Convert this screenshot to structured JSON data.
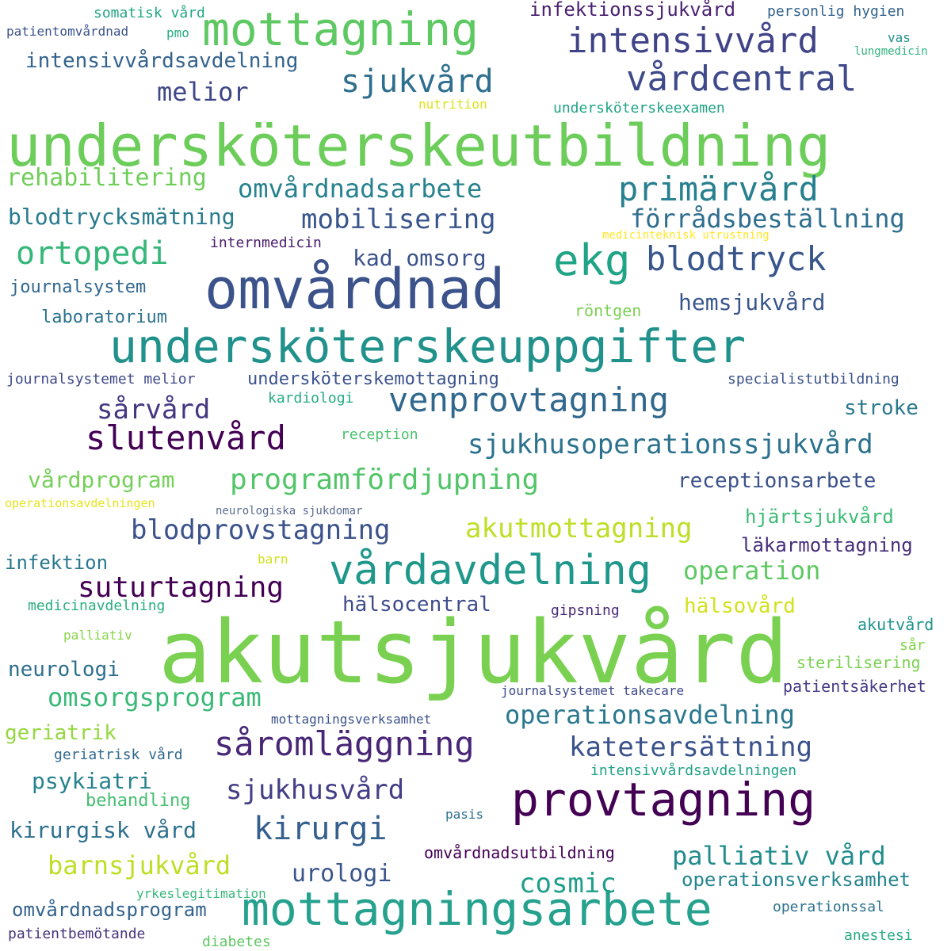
{
  "words": [
    {
      "text": "undersköterskeutbildning",
      "color": "#6ccd5a"
    },
    {
      "text": "akutsjukvård",
      "color": "#7ad151"
    },
    {
      "text": "undersköterskeuppgifter",
      "color": "#21918c"
    },
    {
      "text": "omvårdnad",
      "color": "#3b528b"
    },
    {
      "text": "mottagningsarbete",
      "color": "#25a18e"
    },
    {
      "text": "mottagning",
      "color": "#5ec962"
    },
    {
      "text": "provtagning",
      "color": "#440154"
    },
    {
      "text": "vårdavdelning",
      "color": "#1f988b"
    },
    {
      "text": "ekg",
      "color": "#20a486"
    },
    {
      "text": "vårdcentral",
      "color": "#3e4a89"
    },
    {
      "text": "intensivvård",
      "color": "#404387"
    },
    {
      "text": "sjukvård",
      "color": "#2e6e8e"
    },
    {
      "text": "primärvård",
      "color": "#27808e"
    },
    {
      "text": "blodtryck",
      "color": "#39568c"
    },
    {
      "text": "venprovtagning",
      "color": "#31688e"
    },
    {
      "text": "slutenvård",
      "color": "#440154"
    },
    {
      "text": "såromläggning",
      "color": "#482576"
    },
    {
      "text": "katetersättning",
      "color": "#3b528b"
    },
    {
      "text": "kirurgi",
      "color": "#355f8d"
    },
    {
      "text": "sjukhusvård",
      "color": "#433e85"
    },
    {
      "text": "programfördjupning",
      "color": "#52c569"
    },
    {
      "text": "sjukhusoperationssjukvård",
      "color": "#2c728e"
    },
    {
      "text": "omvårdnadsarbete",
      "color": "#26828e"
    },
    {
      "text": "blodprovstagning",
      "color": "#3b528b"
    },
    {
      "text": "akutmottagning",
      "color": "#bddf26"
    },
    {
      "text": "suturtagning",
      "color": "#440154"
    },
    {
      "text": "operation",
      "color": "#5ec962"
    },
    {
      "text": "ortopedi",
      "color": "#35b779"
    },
    {
      "text": "mobilisering",
      "color": "#39568c"
    },
    {
      "text": "förrådsbeställning",
      "color": "#2e6e8e"
    },
    {
      "text": "omsorgsprogram",
      "color": "#38b977"
    },
    {
      "text": "operationsavdelning",
      "color": "#2a788e"
    },
    {
      "text": "cosmic",
      "color": "#1f9e89"
    },
    {
      "text": "barnsjukvård",
      "color": "#bddf26"
    },
    {
      "text": "palliativ vård",
      "color": "#228c8d"
    },
    {
      "text": "sårvård",
      "color": "#453781"
    },
    {
      "text": "melior",
      "color": "#3f4788"
    },
    {
      "text": "rehabilitering",
      "color": "#6ece58"
    },
    {
      "text": "blodtrycksmätning",
      "color": "#297b8e"
    },
    {
      "text": "kad omsorg",
      "color": "#3b528b"
    },
    {
      "text": "hemsjukvård",
      "color": "#39568c"
    },
    {
      "text": "intensivvårdsavdelning",
      "color": "#33638d"
    },
    {
      "text": "receptionsarbete",
      "color": "#3b528b"
    },
    {
      "text": "vårdprogram",
      "color": "#73d056"
    },
    {
      "text": "stroke",
      "color": "#2a788e"
    },
    {
      "text": "urologi",
      "color": "#39568c"
    },
    {
      "text": "kirurgisk vård",
      "color": "#2d708e"
    },
    {
      "text": "psykiatri",
      "color": "#26828e"
    },
    {
      "text": "infektionssjukvård",
      "color": "#481f70"
    },
    {
      "text": "hälsocentral",
      "color": "#3e4c8a"
    },
    {
      "text": "hälsovård",
      "color": "#d2e21b"
    },
    {
      "text": "neurologi",
      "color": "#2d708e"
    },
    {
      "text": "operationsverksamhet",
      "color": "#25858e"
    },
    {
      "text": "omvårdnadsprogram",
      "color": "#33638d"
    },
    {
      "text": "geriatrik",
      "color": "#95d840"
    },
    {
      "text": "hjärtsjukvård",
      "color": "#3cbb75"
    },
    {
      "text": "läkarmottagning",
      "color": "#472d7b"
    },
    {
      "text": "infektion",
      "color": "#2a788e"
    },
    {
      "text": "journalsystem",
      "color": "#31688e"
    },
    {
      "text": "laboratorium",
      "color": "#2c728e"
    },
    {
      "text": "undersköterskemottagning",
      "color": "#3b528b"
    },
    {
      "text": "omvårdnadsutbildning",
      "color": "#440154"
    },
    {
      "text": "behandling",
      "color": "#44bf70"
    },
    {
      "text": "internmedicin",
      "color": "#481d6f"
    },
    {
      "text": "journalsystemet melior",
      "color": "#3e4a89"
    },
    {
      "text": "kardiologi",
      "color": "#25ab82"
    },
    {
      "text": "specialistutbildning",
      "color": "#3b528b"
    },
    {
      "text": "personlig hygien",
      "color": "#33638d"
    },
    {
      "text": "somatisk vård",
      "color": "#22a785"
    },
    {
      "text": "patientomvårdnad",
      "color": "#3b528b"
    },
    {
      "text": "pmo",
      "color": "#25ac82"
    },
    {
      "text": "vas",
      "color": "#21918c"
    },
    {
      "text": "lungmedicin",
      "color": "#2fb47c"
    },
    {
      "text": "nutrition",
      "color": "#dde318"
    },
    {
      "text": "undersköterskeexamen",
      "color": "#20a386"
    },
    {
      "text": "medicinteknisk utrustning",
      "color": "#fde725"
    },
    {
      "text": "röntgen",
      "color": "#7ad151"
    },
    {
      "text": "reception",
      "color": "#4ac16d"
    },
    {
      "text": "operationsavdelningen",
      "color": "#e5e419"
    },
    {
      "text": "neurologiska sjukdomar",
      "color": "#5b6c8f"
    },
    {
      "text": "barn",
      "color": "#d2e21b"
    },
    {
      "text": "medicinavdelning",
      "color": "#29af7f"
    },
    {
      "text": "gipsning",
      "color": "#482878"
    },
    {
      "text": "akutvård",
      "color": "#20938c"
    },
    {
      "text": "sår",
      "color": "#84d44b"
    },
    {
      "text": "sterilisering",
      "color": "#7ad151"
    },
    {
      "text": "patientsäkerhet",
      "color": "#443a83"
    },
    {
      "text": "palliativ",
      "color": "#86d549"
    },
    {
      "text": "journalsystemet takecare",
      "color": "#3e4a89"
    },
    {
      "text": "mottagningsverksamhet",
      "color": "#3b528b"
    },
    {
      "text": "geriatrisk vård",
      "color": "#31688e"
    },
    {
      "text": "intensivvårdsavdelningen",
      "color": "#1fa187"
    },
    {
      "text": "pasis",
      "color": "#2c728e"
    },
    {
      "text": "yrkeslegitimation",
      "color": "#35b779"
    },
    {
      "text": "patientbemötande",
      "color": "#46327e"
    },
    {
      "text": "diabetes",
      "color": "#5ec962"
    },
    {
      "text": "operationssal",
      "color": "#2c728e"
    },
    {
      "text": "anestesi",
      "color": "#25ab82"
    }
  ]
}
